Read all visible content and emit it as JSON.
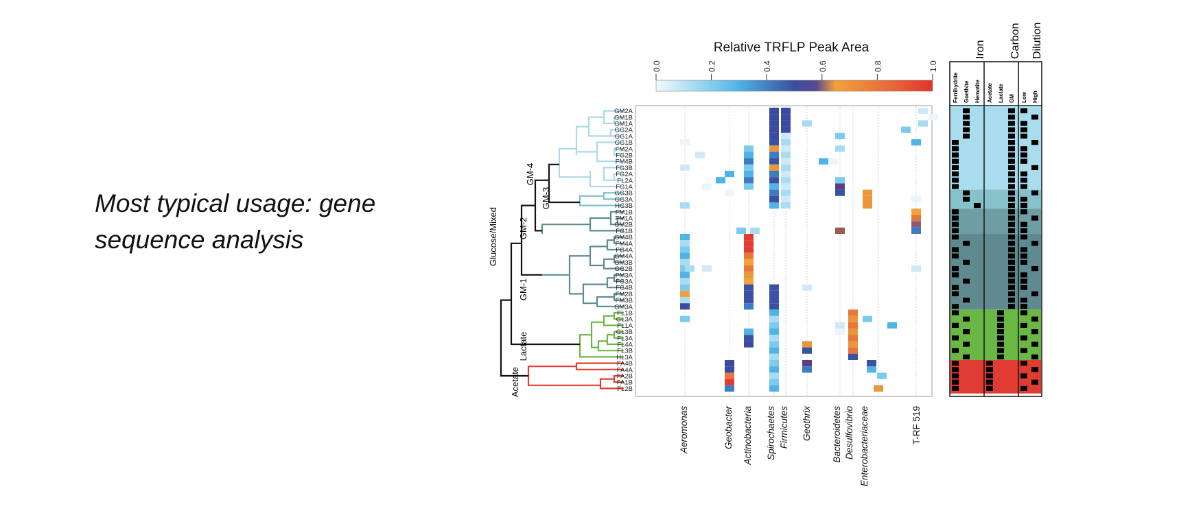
{
  "slide": {
    "text_line1": "Most typical usage: gene",
    "text_line2": "sequence analysis"
  },
  "figure": {
    "colorbar": {
      "title": "Relative TRFLP Peak Area",
      "ticks": [
        "0.0",
        "0.2",
        "0.4",
        "0.6",
        "0.8",
        "1.0"
      ],
      "colors": [
        "#f2f8fd",
        "#5bbdea",
        "#3a55a6",
        "#f4a23c",
        "#e03c32"
      ]
    },
    "samples": [
      "GM2A",
      "GM1B",
      "GM1A",
      "GG2A",
      "GG1A",
      "GG1B",
      "FM2A",
      "FG2B",
      "FM4B",
      "FG3B",
      "FG2A",
      "FL2A",
      "FG1A",
      "GG3B",
      "GG3A",
      "HG3B",
      "FM1B",
      "FM1A",
      "GM2B",
      "FG1B",
      "GM4B",
      "FM4A",
      "FG4A",
      "GM4A",
      "GM3B",
      "GG2B",
      "FM3A",
      "FG3A",
      "FG4B",
      "FM2B",
      "FM3B",
      "GM3A",
      "FL1B",
      "GL3A",
      "FL1A",
      "GL3B",
      "FL3A",
      "FL4A",
      "FL3B",
      "HL3A",
      "FA4B",
      "FA4A",
      "FA2B",
      "FA1B",
      "FL2B"
    ],
    "cluster_labels": [
      "Glucose/Mixed",
      "GM-4",
      "GM-3",
      "GM-2",
      "GM-1",
      "Lactate",
      "Acetate"
    ],
    "taxa": [
      "Aeromonas",
      "Geobacter",
      "Actinobacteria",
      "Spirochaetes",
      "Firmicutes",
      "Geothrix",
      "Bacteroidetes",
      "Desulfovibrio",
      "Enterobacteriaceae",
      "T-RF 519"
    ],
    "panel": {
      "headers": [
        "Iron",
        "Carbon",
        "Dilution"
      ],
      "columns": [
        "Ferrihydrite",
        "Goethite",
        "Hematite",
        "Acetate",
        "Lactate",
        "GM",
        "Low",
        "High"
      ]
    },
    "colors": {
      "gm_light": "#a9d9ea",
      "gm_mid": "#7fbfcc",
      "gm_dark": "#5a8c92",
      "lactate": "#6ab745",
      "acetate": "#e03c32",
      "cell_black": "#000000"
    }
  }
}
